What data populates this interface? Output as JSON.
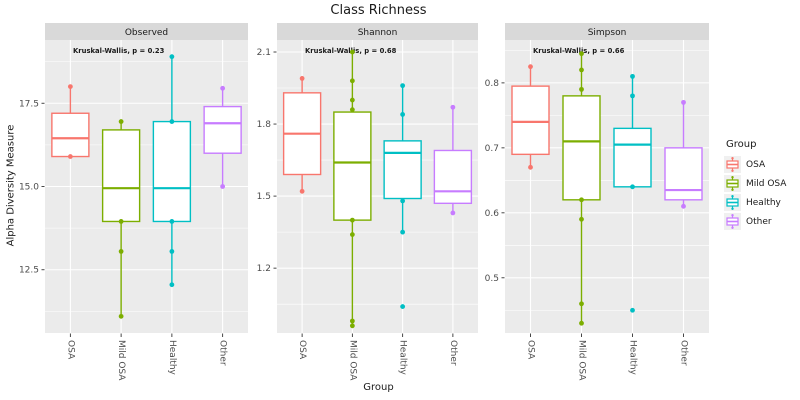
{
  "title": "Class Richness",
  "y_axis_title": "Alpha Diversity Measure",
  "x_axis_title": "Group",
  "colors": {
    "panel_bg": "#EBEBEB",
    "strip_bg": "#D9D9D9",
    "grid": "#FFFFFF",
    "tick_text": "#4D4D4D",
    "tick_mark": "#333333",
    "text": "#1A1A1A",
    "osa": "#F8766D",
    "mild_osa": "#7CAE00",
    "healthy": "#00BFC4",
    "other": "#C77CFF"
  },
  "legend": {
    "title": "Group",
    "items": [
      {
        "label": "OSA",
        "color": "#F8766D"
      },
      {
        "label": "Mild OSA",
        "color": "#7CAE00"
      },
      {
        "label": "Healthy",
        "color": "#00BFC4"
      },
      {
        "label": "Other",
        "color": "#C77CFF"
      }
    ]
  },
  "chart_data": [
    {
      "type": "boxplot",
      "facet_label": "Observed",
      "annotation": "Kruskal-Wallis, p = 0.23",
      "categories": [
        "OSA",
        "Mild OSA",
        "Healthy",
        "Other"
      ],
      "ylim": [
        10.6,
        19.4
      ],
      "yticks": [
        12.5,
        15.0,
        17.5
      ],
      "ytick_labels": [
        "12.5",
        "15.0",
        "17.5"
      ],
      "series": [
        {
          "group": "OSA",
          "color": "#F8766D",
          "whisker_low": 15.9,
          "q1": 15.9,
          "median": 16.45,
          "q3": 17.2,
          "whisker_high": 18.0,
          "points": [
            18.0,
            15.9
          ]
        },
        {
          "group": "Mild OSA",
          "color": "#7CAE00",
          "whisker_low": 11.1,
          "q1": 13.95,
          "median": 14.95,
          "q3": 16.7,
          "whisker_high": 16.95,
          "points": [
            16.95,
            13.95,
            13.05,
            11.1
          ]
        },
        {
          "group": "Healthy",
          "color": "#00BFC4",
          "whisker_low": 12.05,
          "q1": 13.95,
          "median": 14.95,
          "q3": 16.95,
          "whisker_high": 18.9,
          "points": [
            18.9,
            16.95,
            13.95,
            13.05,
            12.05
          ]
        },
        {
          "group": "Other",
          "color": "#C77CFF",
          "whisker_low": 15.0,
          "q1": 16.0,
          "median": 16.9,
          "q3": 17.4,
          "whisker_high": 17.95,
          "points": [
            17.95,
            15.0
          ]
        }
      ]
    },
    {
      "type": "boxplot",
      "facet_label": "Shannon",
      "annotation": "Kruskal-Wallis, p = 0.68",
      "categories": [
        "OSA",
        "Mild OSA",
        "Healthy",
        "Other"
      ],
      "ylim": [
        0.93,
        2.15
      ],
      "yticks": [
        1.2,
        1.5,
        1.8,
        2.1
      ],
      "ytick_labels": [
        "1.2",
        "1.5",
        "1.8",
        "2.1"
      ],
      "series": [
        {
          "group": "OSA",
          "color": "#F8766D",
          "whisker_low": 1.52,
          "q1": 1.59,
          "median": 1.76,
          "q3": 1.93,
          "whisker_high": 1.99,
          "points": [
            1.99,
            1.52
          ]
        },
        {
          "group": "Mild OSA",
          "color": "#7CAE00",
          "whisker_low": 0.96,
          "q1": 1.4,
          "median": 1.64,
          "q3": 1.85,
          "whisker_high": 2.1,
          "points": [
            2.1,
            1.98,
            1.9,
            1.86,
            1.4,
            1.34,
            0.98,
            0.96
          ]
        },
        {
          "group": "Healthy",
          "color": "#00BFC4",
          "whisker_low": 1.35,
          "q1": 1.49,
          "median": 1.68,
          "q3": 1.73,
          "whisker_high": 1.96,
          "points": [
            1.96,
            1.84,
            1.48,
            1.35,
            1.04
          ]
        },
        {
          "group": "Other",
          "color": "#C77CFF",
          "whisker_low": 1.43,
          "q1": 1.47,
          "median": 1.52,
          "q3": 1.69,
          "whisker_high": 1.87,
          "points": [
            1.87,
            1.43
          ]
        }
      ]
    },
    {
      "type": "boxplot",
      "facet_label": "Simpson",
      "annotation": "Kruskal-Wallis, p = 0.66",
      "categories": [
        "OSA",
        "Mild OSA",
        "Healthy",
        "Other"
      ],
      "ylim": [
        0.415,
        0.866
      ],
      "yticks": [
        0.5,
        0.6,
        0.7,
        0.8
      ],
      "ytick_labels": [
        "0.5",
        "0.6",
        "0.7",
        "0.8"
      ],
      "series": [
        {
          "group": "OSA",
          "color": "#F8766D",
          "whisker_low": 0.67,
          "q1": 0.69,
          "median": 0.74,
          "q3": 0.795,
          "whisker_high": 0.825,
          "points": [
            0.825,
            0.67
          ]
        },
        {
          "group": "Mild OSA",
          "color": "#7CAE00",
          "whisker_low": 0.43,
          "q1": 0.62,
          "median": 0.71,
          "q3": 0.78,
          "whisker_high": 0.845,
          "points": [
            0.845,
            0.82,
            0.79,
            0.62,
            0.59,
            0.46,
            0.43
          ]
        },
        {
          "group": "Healthy",
          "color": "#00BFC4",
          "whisker_low": 0.64,
          "q1": 0.64,
          "median": 0.705,
          "q3": 0.73,
          "whisker_high": 0.81,
          "points": [
            0.81,
            0.78,
            0.64,
            0.45
          ]
        },
        {
          "group": "Other",
          "color": "#C77CFF",
          "whisker_low": 0.61,
          "q1": 0.62,
          "median": 0.635,
          "q3": 0.7,
          "whisker_high": 0.77,
          "points": [
            0.77,
            0.61
          ]
        }
      ]
    }
  ]
}
